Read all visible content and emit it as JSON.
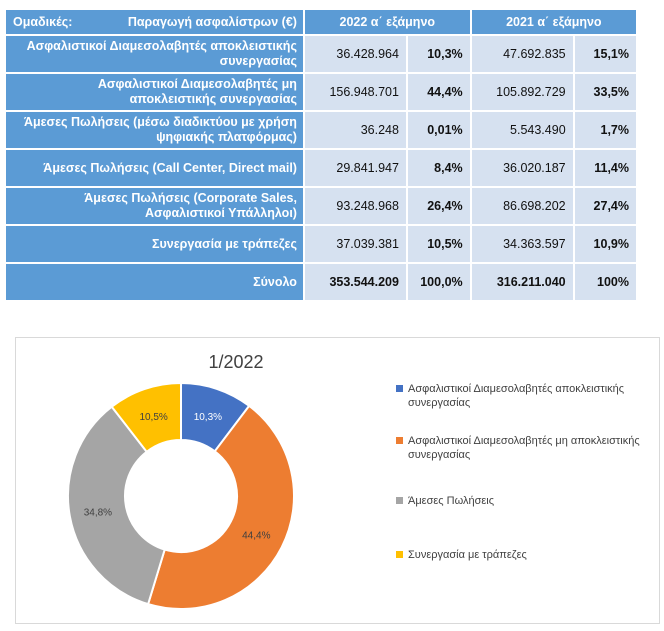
{
  "table": {
    "header": {
      "col1_left": "Ομαδικές:",
      "col1_right": "Παραγωγή ασφαλίστρων   (€)",
      "col2": "2022  α΄ εξάμηνο",
      "col3": "2021  α΄ εξάμηνο"
    },
    "rows": [
      {
        "label_1": "Ασφαλιστικοί Διαμεσολαβητές αποκλειστικής",
        "label_2": "συνεργασίας",
        "v2022": "36.428.964",
        "p2022": "10,3%",
        "v2021": "47.692.835",
        "p2021": "15,1%"
      },
      {
        "label_1": "Ασφαλιστικοί Διαμεσολαβητές  μη",
        "label_2": "αποκλειστικής συνεργασίας",
        "v2022": "156.948.701",
        "p2022": "44,4%",
        "v2021": "105.892.729",
        "p2021": "33,5%"
      },
      {
        "label_1": "Άμεσες Πωλήσεις  (μέσω διαδικτύου με χρήση",
        "label_2": "ψηφιακής πλατφόρμας)",
        "v2022": "36.248",
        "p2022": "0,01%",
        "v2021": "5.543.490",
        "p2021": "1,7%"
      },
      {
        "label_1": "Άμεσες Πωλήσεις  (Call Center,  Direct mail)",
        "label_2": "",
        "v2022": "29.841.947",
        "p2022": "8,4%",
        "v2021": "36.020.187",
        "p2021": "11,4%"
      },
      {
        "label_1": "Άμεσες Πωλήσεις  (Corporate Sales,",
        "label_2": "Ασφαλιστικοί Υπάλληλοι)",
        "v2022": "93.248.968",
        "p2022": "26,4%",
        "v2021": "86.698.202",
        "p2021": "27,4%"
      },
      {
        "label_1": "Συνεργασία με τράπεζες",
        "label_2": "",
        "v2022": "37.039.381",
        "p2022": "10,5%",
        "v2021": "34.363.597",
        "p2021": "10,9%"
      },
      {
        "label_1": "Σύνολο",
        "label_2": "",
        "v2022": "353.544.209",
        "p2022": "100,0%",
        "v2021": "316.211.040",
        "p2021": "100%"
      }
    ]
  },
  "chart_data": {
    "type": "pie",
    "variant": "donut",
    "title": "1/2022",
    "legend_position": "right",
    "slices": [
      {
        "name": "Ασφαλιστικοί Διαμεσολαβητές αποκλειστικής συνεργασίας",
        "value": 10.3,
        "label": "10,3%",
        "color": "#4472c4",
        "label_color": "#ffffff"
      },
      {
        "name": "Ασφαλιστικοί Διαμεσολαβητές  μη αποκλειστικής συνεργασίας",
        "value": 44.4,
        "label": "44,4%",
        "color": "#ed7d31",
        "label_color": "#404040"
      },
      {
        "name": "Άμεσες Πωλήσεις",
        "value": 34.8,
        "label": "34,8%",
        "color": "#a5a5a5",
        "label_color": "#404040"
      },
      {
        "name": "Συνεργασία με τράπεζες",
        "value": 10.5,
        "label": "10,5%",
        "color": "#ffc000",
        "label_color": "#404040"
      }
    ]
  }
}
